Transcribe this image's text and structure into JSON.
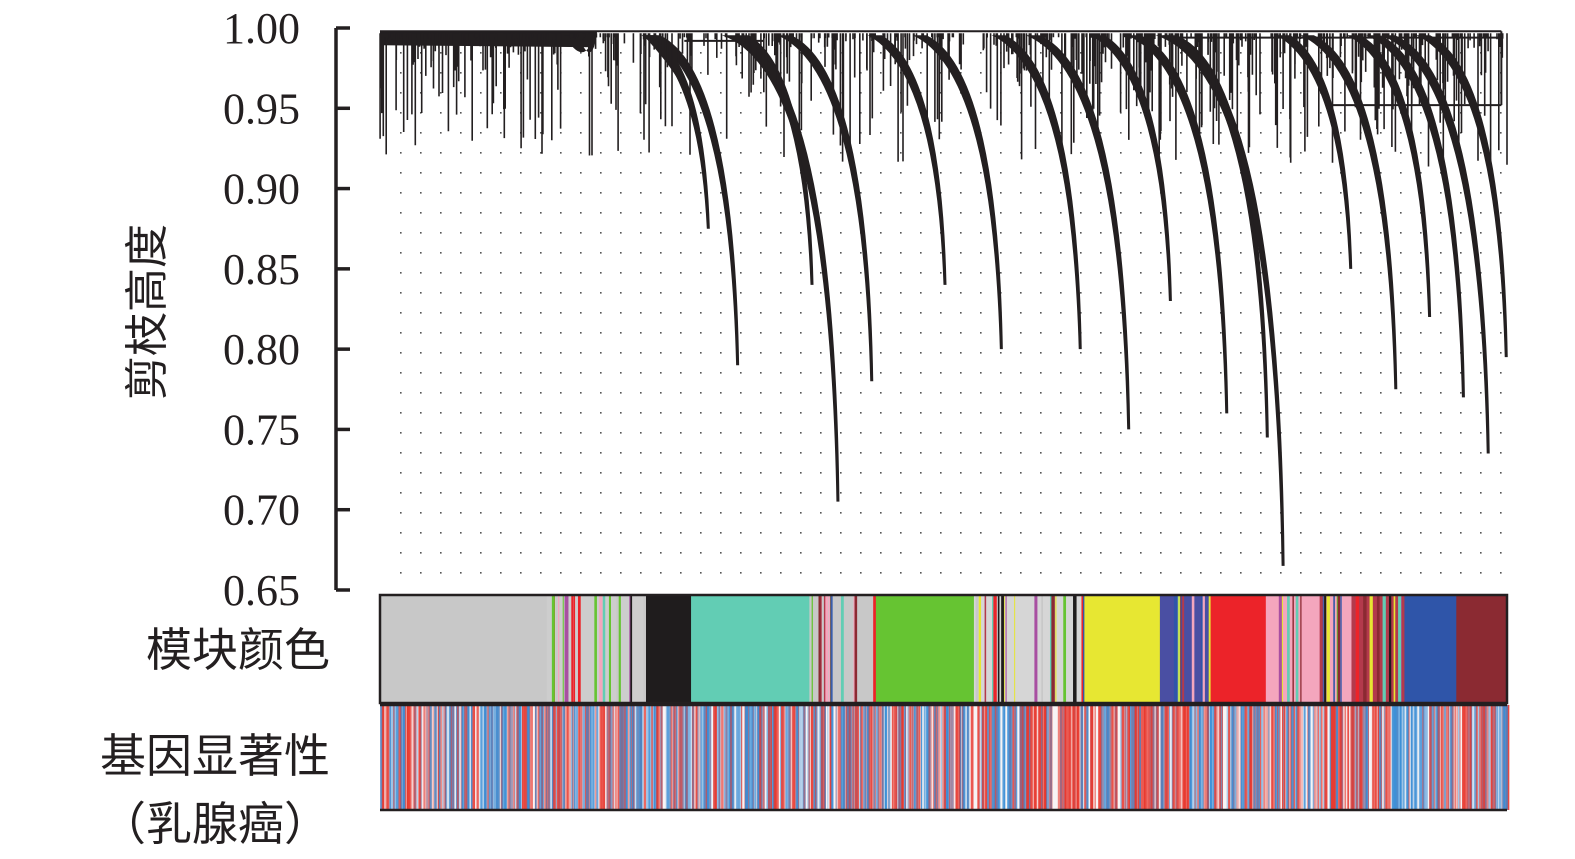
{
  "chart_data": {
    "type": "dendrogram",
    "ylabel": "剪枝高度",
    "ylim": [
      0.65,
      1.0
    ],
    "yticks": [
      "1.00",
      "0.95",
      "0.90",
      "0.85",
      "0.80",
      "0.75",
      "0.70",
      "0.65"
    ],
    "grid": "dotted",
    "tracks": [
      {
        "label": "模块颜色"
      },
      {
        "label": "基因显著性",
        "sublabel": "（乳腺癌）"
      }
    ],
    "module_colors": [
      {
        "color": "#c8c8c8",
        "share": 0.148
      },
      {
        "color": "#cdcdcd",
        "share": 0.088,
        "mixed": true
      },
      {
        "color": "#1f1c1d",
        "share": 0.04
      },
      {
        "color": "#62cdb4",
        "share": 0.105
      },
      {
        "color": "#c8c8c8",
        "share": 0.059,
        "mixed": true
      },
      {
        "color": "#66c432",
        "share": 0.087
      },
      {
        "color": "#d6d6d6",
        "share": 0.098,
        "mixed": true
      },
      {
        "color": "#e7e732",
        "share": 0.067
      },
      {
        "color": "#4a4fa3",
        "share": 0.045,
        "mixed": true
      },
      {
        "color": "#ec2329",
        "share": 0.049
      },
      {
        "color": "#f4a6bd",
        "share": 0.076,
        "mixed": true
      },
      {
        "color": "#b33a4c",
        "share": 0.047,
        "mixed": true
      },
      {
        "color": "#2f55a9",
        "share": 0.046
      },
      {
        "color": "#8b2a32",
        "share": 0.044
      }
    ],
    "branches": [
      {
        "x": 0.19,
        "y": 0.998
      },
      {
        "x": 0.27,
        "y": 0.96
      },
      {
        "x": 0.29,
        "y": 0.875
      },
      {
        "x": 0.316,
        "y": 0.79
      },
      {
        "x": 0.382,
        "y": 0.84
      },
      {
        "x": 0.405,
        "y": 0.705
      },
      {
        "x": 0.435,
        "y": 0.78
      },
      {
        "x": 0.5,
        "y": 0.84
      },
      {
        "x": 0.55,
        "y": 0.8
      },
      {
        "x": 0.62,
        "y": 0.8
      },
      {
        "x": 0.663,
        "y": 0.75
      },
      {
        "x": 0.7,
        "y": 0.83
      },
      {
        "x": 0.75,
        "y": 0.76
      },
      {
        "x": 0.786,
        "y": 0.745
      },
      {
        "x": 0.8,
        "y": 0.665
      },
      {
        "x": 0.86,
        "y": 0.85
      },
      {
        "x": 0.9,
        "y": 0.775
      },
      {
        "x": 0.93,
        "y": 0.82
      },
      {
        "x": 0.96,
        "y": 0.77
      },
      {
        "x": 0.982,
        "y": 0.735
      },
      {
        "x": 0.998,
        "y": 0.795
      }
    ]
  },
  "colors": {
    "ink": "#231f20",
    "significance_high": "#e8392f",
    "significance_low": "#3a8ed6"
  }
}
